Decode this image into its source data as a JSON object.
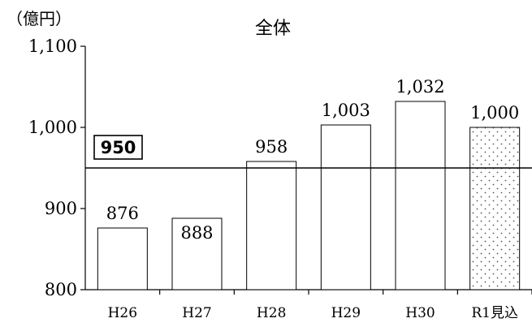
{
  "chart_data": {
    "type": "bar",
    "title": "全体",
    "unit_label": "（億円）",
    "categories": [
      "H26",
      "H27",
      "H28",
      "H29",
      "H30",
      "R1見込"
    ],
    "values": [
      876,
      888,
      958,
      1003,
      1032,
      1000
    ],
    "data_labels": [
      "876",
      "888",
      "958",
      "1,003",
      "1,032",
      "1,000"
    ],
    "bar_patterns": [
      "plain",
      "plain",
      "plain",
      "plain",
      "plain",
      "dotted"
    ],
    "ylim": [
      800,
      1100
    ],
    "yticks": [
      800,
      900,
      1000,
      1100
    ],
    "ytick_labels": [
      "800",
      "900",
      "1,000",
      "1,100"
    ],
    "grid": false,
    "reference_line": {
      "value": 950,
      "label": "950"
    },
    "colors": {
      "bar_fill": "#ffffff",
      "bar_stroke": "#000000",
      "axis": "#000000",
      "dot": "#555555"
    }
  }
}
